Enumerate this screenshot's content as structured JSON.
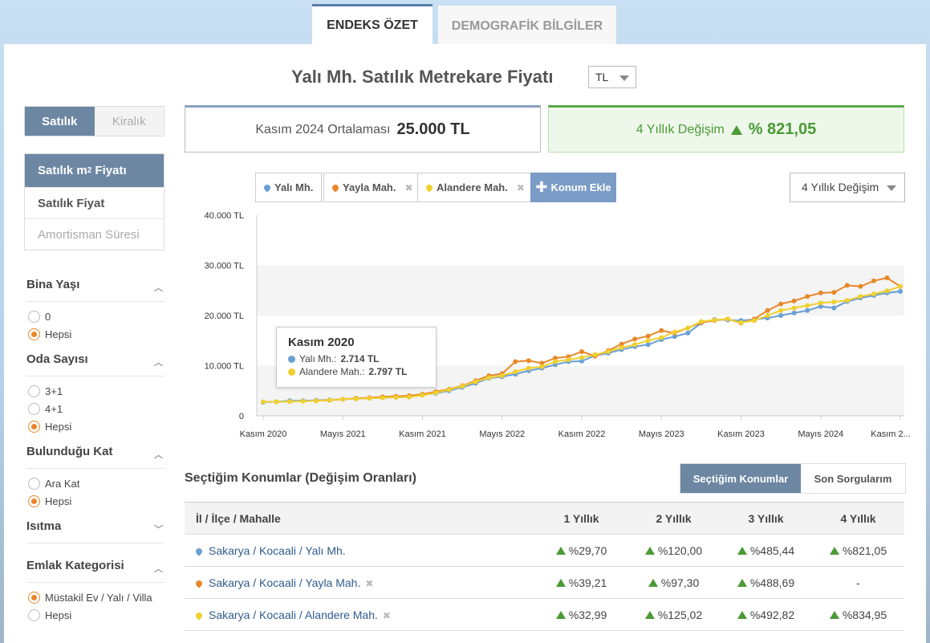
{
  "tabs": [
    {
      "label": "ENDEKS ÖZET",
      "active": true
    },
    {
      "label": "DEMOGRAFİK BİLGİLER",
      "active": false
    }
  ],
  "title": "Yalı Mh. Satılık Metrekare Fiyatı",
  "currency": "TL",
  "sidebar": {
    "toggle": [
      "Satılık",
      "Kiralık"
    ],
    "metrics": [
      "Satılık m² Fiyatı",
      "Satılık Fiyat",
      "Amortisman Süresi"
    ],
    "filters": {
      "bina_yasi": {
        "title": "Bina Yaşı",
        "options": [
          "0",
          "Hepsi"
        ],
        "selected": "Hepsi"
      },
      "oda_sayisi": {
        "title": "Oda Sayısı",
        "options": [
          "3+1",
          "4+1",
          "Hepsi"
        ],
        "selected": "Hepsi"
      },
      "bulundugu_kat": {
        "title": "Bulunduğu Kat",
        "options": [
          "Ara Kat",
          "Hepsi"
        ],
        "selected": "Hepsi"
      },
      "isitma": {
        "title": "Isıtma"
      },
      "emlak_kategorisi": {
        "title": "Emlak Kategorisi",
        "options": [
          "Müstakil Ev / Yalı / Villa",
          "Hepsi"
        ],
        "selected": "Müstakil Ev / Yalı / Villa"
      }
    }
  },
  "summary": {
    "avg_label": "Kasım 2024 Ortalaması",
    "avg_value": "25.000 TL",
    "change_label": "4 Yıllık Değişim",
    "change_value": "% 821,05"
  },
  "locations": [
    {
      "label": "Yalı Mh.",
      "color": "#6a9fd4",
      "removable": false
    },
    {
      "label": "Yayla Mah.",
      "color": "#e8882a",
      "removable": true
    },
    {
      "label": "Alandere Mah.",
      "color": "#f0d030",
      "removable": true
    }
  ],
  "add_location_label": "Konum Ekle",
  "period_select": "4 Yıllık Değişim",
  "chart_data": {
    "type": "line",
    "x_tick_labels": [
      "Kasım 2020",
      "Mayıs 2021",
      "Kasım 2021",
      "Mayıs 2022",
      "Kasım 2022",
      "Mayıs 2023",
      "Kasım 2023",
      "Mayıs 2024",
      "Kasım 2..."
    ],
    "y_tick_labels": [
      "0",
      "10.000 TL",
      "20.000 TL",
      "30.000 TL",
      "40.000 TL"
    ],
    "ylim": [
      0,
      40000
    ],
    "series": [
      {
        "name": "Yalı Mh.",
        "color": "#6a9fd4",
        "values": [
          2714,
          2800,
          3000,
          3000,
          3100,
          3200,
          3300,
          3400,
          3500,
          3600,
          3700,
          3800,
          4200,
          4500,
          5000,
          5700,
          6500,
          7500,
          7800,
          8300,
          9000,
          9500,
          10200,
          10800,
          10900,
          12000,
          12500,
          13200,
          13800,
          14200,
          15200,
          15800,
          16500,
          18500,
          19200,
          19100,
          19000,
          19200,
          19500,
          20000,
          20500,
          21000,
          21800,
          21500,
          22800,
          23500,
          24000,
          24500,
          24800
        ]
      },
      {
        "name": "Yayla Mah.",
        "color": "#e8882a",
        "values": [
          null,
          null,
          null,
          null,
          3000,
          3100,
          3300,
          3500,
          3600,
          3800,
          3900,
          4000,
          4300,
          4800,
          5300,
          6000,
          7000,
          8000,
          8400,
          10800,
          11000,
          10500,
          11500,
          11800,
          12800,
          11900,
          13000,
          14300,
          15300,
          15900,
          17000,
          16500,
          17500,
          18600,
          19000,
          19300,
          18500,
          19300,
          21000,
          22300,
          22900,
          23800,
          24500,
          24600,
          26000,
          25800,
          26900,
          27500,
          25800
        ]
      },
      {
        "name": "Alandere Mah.",
        "color": "#f0d030",
        "values": [
          2797,
          2800,
          2850,
          2900,
          3000,
          3150,
          3300,
          3400,
          3500,
          3600,
          3700,
          3750,
          4100,
          4600,
          5200,
          5900,
          6800,
          7600,
          8000,
          8800,
          9500,
          9800,
          10800,
          11200,
          11600,
          12200,
          12800,
          13600,
          14200,
          15000,
          15600,
          16700,
          17500,
          18800,
          19100,
          19300,
          18600,
          19000,
          20000,
          21000,
          21500,
          22000,
          22500,
          22700,
          23000,
          23800,
          24300,
          24900,
          25800
        ]
      }
    ],
    "tooltip": {
      "title": "Kasım 2020",
      "rows": [
        {
          "name": "Yalı Mh.:",
          "value": "2.714 TL",
          "color": "#6a9fd4"
        },
        {
          "name": "Alandere Mah.:",
          "value": "2.797 TL",
          "color": "#f0d030"
        }
      ]
    }
  },
  "table": {
    "section_title": "Seçtiğim Konumlar (Değişim Oranları)",
    "segments": [
      "Seçtiğim Konumlar",
      "Son Sorgularım"
    ],
    "headers": [
      "İl / İlçe / Mahalle",
      "1 Yıllık",
      "2 Yıllık",
      "3 Yıllık",
      "4 Yıllık"
    ],
    "rows": [
      {
        "loc": "Sakarya / Kocaali / Yalı Mh.",
        "color": "#6a9fd4",
        "removable": false,
        "vals": [
          "%29,70",
          "%120,00",
          "%485,44",
          "%821,05"
        ]
      },
      {
        "loc": "Sakarya / Kocaali / Yayla Mah.",
        "color": "#e8882a",
        "removable": true,
        "vals": [
          "%39,21",
          "%97,30",
          "%488,69",
          "-"
        ]
      },
      {
        "loc": "Sakarya / Kocaali / Alandere Mah.",
        "color": "#f0d030",
        "removable": true,
        "vals": [
          "%32,99",
          "%125,02",
          "%492,82",
          "%834,95"
        ]
      }
    ]
  }
}
